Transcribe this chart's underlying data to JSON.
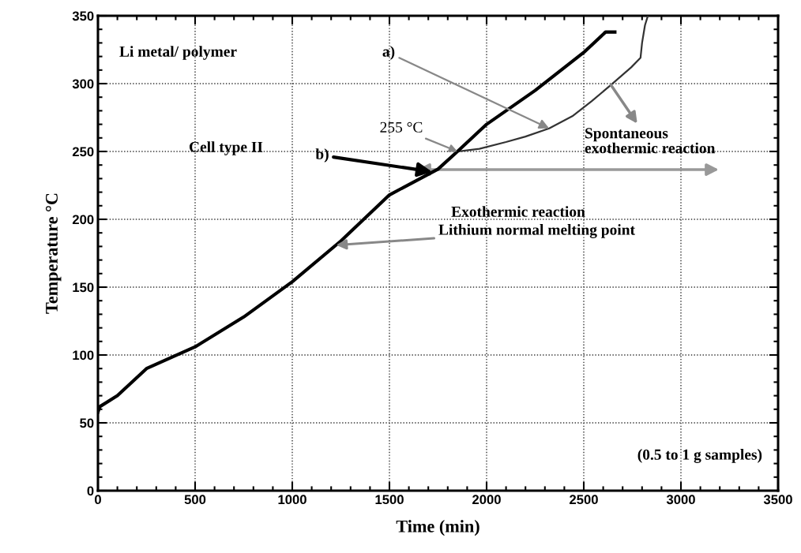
{
  "chart_data": {
    "type": "line",
    "xlabel": "Time (min)",
    "ylabel": "Temperature °C",
    "xlim": [
      0,
      3500
    ],
    "ylim": [
      0,
      350
    ],
    "xticks": [
      0,
      500,
      1000,
      1500,
      2000,
      2500,
      3000,
      3500
    ],
    "yticks": [
      0,
      50,
      100,
      150,
      200,
      250,
      300,
      350
    ],
    "grid": true,
    "series": [
      {
        "color": "#333333",
        "line_style": "solid",
        "x": [
          1850,
          1963,
          2100,
          2200,
          2322,
          2441,
          2540,
          2640,
          2744,
          2792,
          2800,
          2815,
          2830
        ],
        "values": [
          250,
          252,
          257,
          261,
          267,
          276,
          287,
          299,
          312,
          319,
          330,
          343,
          350
        ]
      },
      {
        "color": "#000000",
        "line_style": "solid",
        "x": [
          0,
          10,
          100,
          250,
          500,
          750,
          1000,
          1250,
          1500,
          1750,
          1850,
          2000,
          2250,
          2500,
          2612,
          2660
        ],
        "values": [
          58,
          62,
          70,
          90,
          106,
          128,
          154,
          184,
          218,
          237,
          250,
          270,
          295,
          323,
          338,
          338
        ]
      }
    ],
    "annotations": [
      "Li metal/ polymer",
      {
        "text": "a)",
        "x": 2322,
        "y": 267
      },
      "Cell type II",
      {
        "text": "b)",
        "x": 1720,
        "y": 235
      },
      {
        "text": "255 °C",
        "x": 1850,
        "y": 250
      },
      {
        "text": "Spontaneous\nexothermic reaction",
        "x": 2640,
        "y": 299
      },
      "Exothermic reaction",
      {
        "text": "Lithium normal melting point",
        "x": 1225,
        "y": 181
      },
      "(0.5 to 1 g samples)"
    ]
  }
}
